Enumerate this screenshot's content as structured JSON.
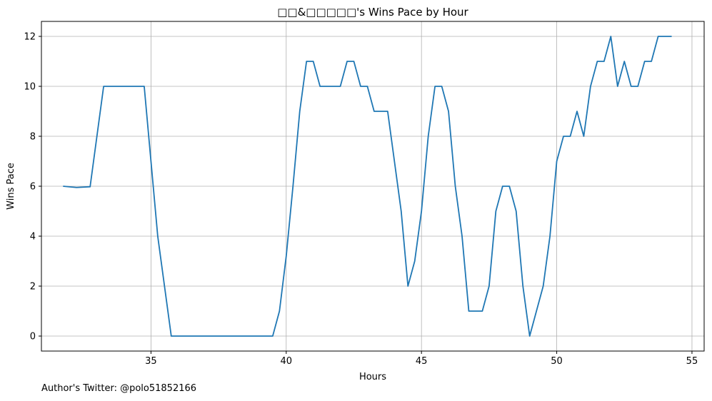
{
  "chart_data": {
    "type": "line",
    "title": "□□&□□□□□'s Wins Pace by Hour",
    "xlabel": "Hours",
    "ylabel": "Wins Pace",
    "xlim": [
      30.95,
      55.45
    ],
    "ylim": [
      -0.6,
      12.6
    ],
    "xticks": [
      35,
      40,
      45,
      50,
      55
    ],
    "yticks": [
      0,
      2,
      4,
      6,
      8,
      10,
      12
    ],
    "grid": true,
    "series": [
      {
        "color": "#1f77b4",
        "x": [
          31.75,
          32.25,
          32.75,
          33.25,
          33.5,
          33.75,
          34.0,
          34.25,
          34.5,
          34.75,
          35.0,
          35.25,
          35.5,
          35.75,
          36.0,
          36.5,
          37.0,
          37.5,
          38.0,
          38.5,
          39.0,
          39.5,
          39.75,
          40.0,
          40.25,
          40.5,
          40.75,
          41.0,
          41.25,
          41.5,
          41.75,
          42.0,
          42.25,
          42.5,
          42.75,
          43.0,
          43.25,
          43.5,
          43.75,
          44.0,
          44.25,
          44.5,
          44.75,
          45.0,
          45.25,
          45.5,
          45.75,
          46.0,
          46.25,
          46.5,
          46.75,
          47.0,
          47.25,
          47.5,
          47.75,
          48.0,
          48.25,
          48.5,
          48.75,
          49.0,
          49.25,
          49.5,
          49.75,
          50.0,
          50.25,
          50.5,
          50.75,
          51.0,
          51.25,
          51.5,
          51.75,
          52.0,
          52.25,
          52.5,
          52.75,
          53.0,
          53.25,
          53.5,
          53.75,
          54.0,
          54.25
        ],
        "y": [
          6,
          5.95,
          5.98,
          10,
          10,
          10,
          10,
          10,
          10,
          10,
          7,
          4,
          2,
          0,
          0,
          0,
          0,
          0,
          0,
          0,
          0,
          0,
          1,
          3.2,
          6,
          9,
          11,
          11,
          10,
          10,
          10,
          10,
          11,
          11,
          10,
          10,
          9,
          9,
          9,
          7,
          5,
          2,
          3,
          5,
          8,
          10,
          10,
          9,
          6,
          4,
          1,
          1,
          1,
          2,
          5,
          6,
          6,
          5,
          2,
          0,
          1,
          2,
          4,
          7,
          8,
          8,
          9,
          8,
          10,
          11,
          11,
          12,
          10,
          11,
          10,
          10,
          11,
          11,
          12,
          12,
          12
        ]
      }
    ]
  },
  "footer": {
    "author_text": "Author's Twitter: @polo51852166"
  }
}
